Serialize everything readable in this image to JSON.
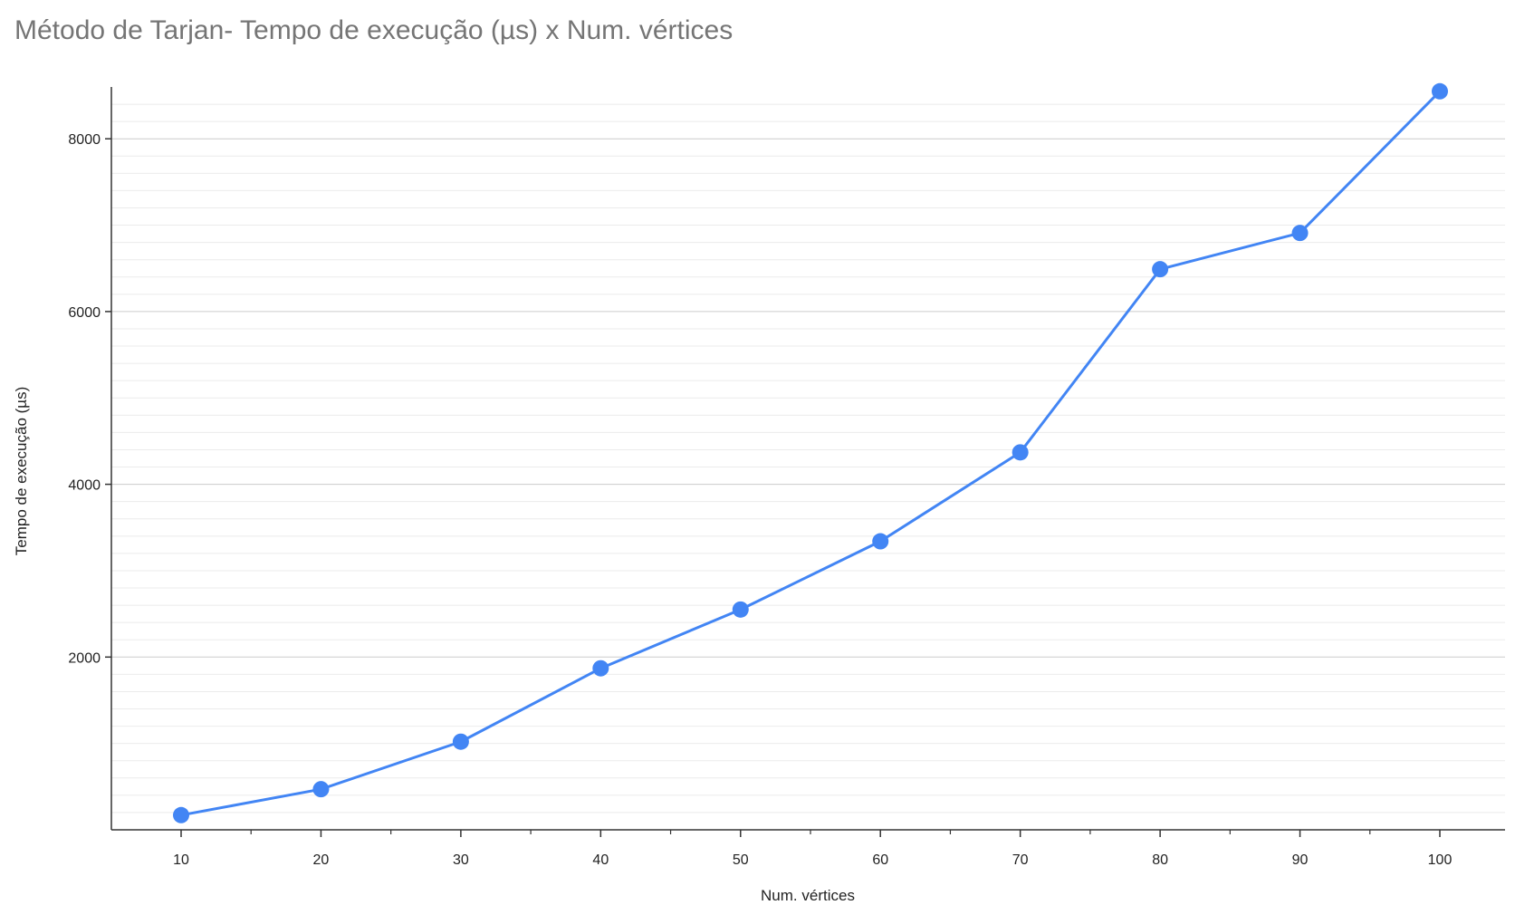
{
  "chart_data": {
    "type": "line",
    "title": "Método de Tarjan- Tempo de execução (µs) x Num. vértices",
    "xlabel": "Num. vértices",
    "ylabel": "Tempo de execução (µs)",
    "x": [
      10,
      20,
      30,
      40,
      50,
      60,
      70,
      80,
      90,
      100
    ],
    "series": [
      {
        "values": [
          170,
          470,
          1020,
          1870,
          2550,
          3340,
          4370,
          6490,
          6910,
          8550
        ],
        "color": "#4285f4"
      }
    ],
    "xlim": [
      5,
      105
    ],
    "ylim": [
      0,
      8600
    ],
    "x_ticks": [
      "10",
      "20",
      "30",
      "40",
      "50",
      "60",
      "70",
      "80",
      "90",
      "100"
    ],
    "y_ticks": [
      "2000",
      "4000",
      "6000",
      "8000"
    ],
    "grid": true,
    "legend": "none",
    "colors": {
      "line": "#4285f4",
      "title": "#757575",
      "axis": "#333333",
      "grid_major": "#cccccc",
      "grid_minor": "#ebebeb"
    }
  }
}
